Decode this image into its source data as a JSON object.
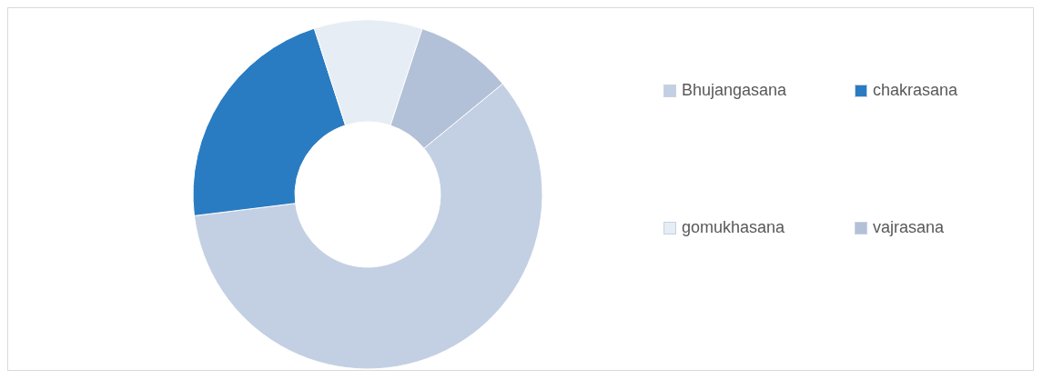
{
  "chart_data": {
    "type": "donut",
    "categories": [
      "Bhujangasana",
      "chakrasana",
      "gomukhasana",
      "vajrasana"
    ],
    "values": [
      59,
      22,
      10,
      9
    ],
    "colors": [
      "#c3d0e3",
      "#2a7cc2",
      "#e6edf4",
      "#b3c1d8"
    ],
    "legend": "right"
  }
}
